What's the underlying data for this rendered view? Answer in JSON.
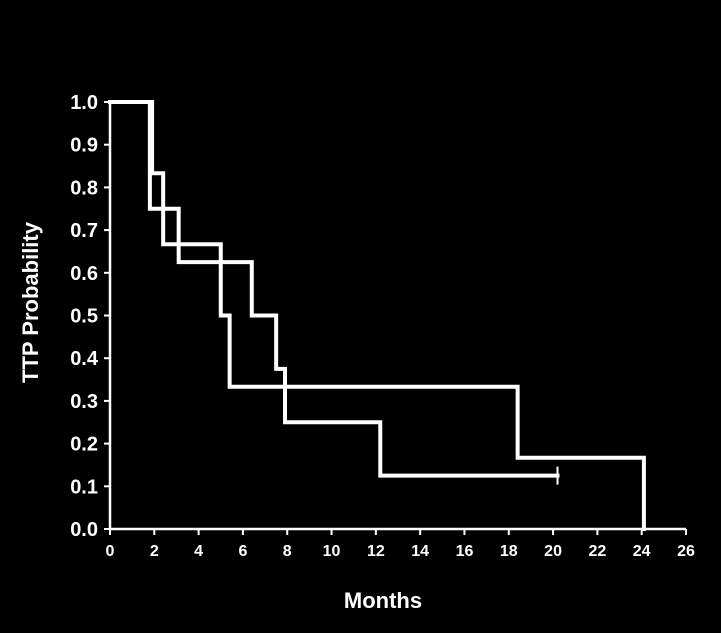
{
  "chart_data": {
    "type": "line",
    "step": true,
    "title": "",
    "xlabel": "Months",
    "ylabel": "TTP Probability",
    "xlim": [
      0,
      26
    ],
    "ylim": [
      0,
      1
    ],
    "xticks": [
      "0",
      "2",
      "4",
      "6",
      "8",
      "10",
      "12",
      "14",
      "16",
      "18",
      "20",
      "22",
      "24",
      "26"
    ],
    "yticks": [
      "0.0",
      "0.1",
      "0.2",
      "0.3",
      "0.4",
      "0.5",
      "0.6",
      "0.7",
      "0.8",
      "0.9",
      "1.0"
    ],
    "grid": false,
    "legend": "none",
    "line_color": "#ffffff",
    "background": "#000000",
    "series": [
      {
        "x": [
          0,
          1.9,
          2.4,
          5.0,
          5.4,
          18.4,
          24.1
        ],
        "y": [
          1.0,
          0.833,
          0.667,
          0.5,
          0.333,
          0.167,
          0.0
        ],
        "censored": []
      },
      {
        "x": [
          0,
          1.8,
          3.1,
          6.4,
          7.5,
          7.9,
          12.2,
          20.2
        ],
        "y": [
          1.0,
          0.75,
          0.625,
          0.5,
          0.375,
          0.25,
          0.125,
          0.125
        ],
        "censored": [
          20.2
        ]
      }
    ]
  }
}
